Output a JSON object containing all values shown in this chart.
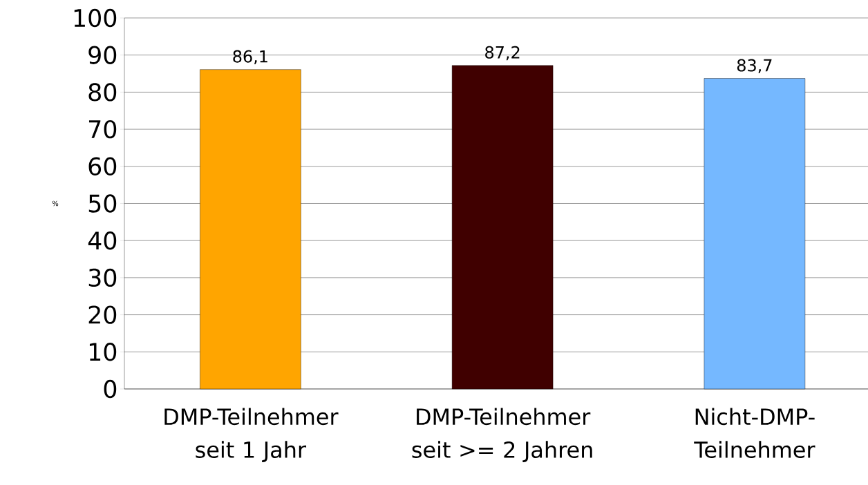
{
  "chart_data": {
    "type": "bar",
    "ylabel": "%",
    "categories": [
      "DMP-Teilnehmer seit 1 Jahr",
      "DMP-Teilnehmer seit >= 2 Jahren",
      "Nicht-DMP-Teilnehmer"
    ],
    "values": [
      86.1,
      87.2,
      83.7
    ],
    "colors": [
      "#ffa500",
      "#400000",
      "#75b8ff"
    ],
    "value_labels": [
      "86,1",
      "87,2",
      "83,7"
    ],
    "ylim": [
      0,
      100
    ],
    "yticks": [
      0,
      10,
      20,
      30,
      40,
      50,
      60,
      70,
      80,
      90,
      100
    ],
    "grid": "y"
  }
}
